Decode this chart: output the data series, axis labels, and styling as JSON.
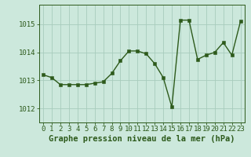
{
  "x": [
    0,
    1,
    2,
    3,
    4,
    5,
    6,
    7,
    8,
    9,
    10,
    11,
    12,
    13,
    14,
    15,
    16,
    17,
    18,
    19,
    20,
    21,
    22,
    23
  ],
  "y": [
    1013.2,
    1013.1,
    1012.85,
    1012.85,
    1012.85,
    1012.85,
    1012.9,
    1012.95,
    1013.25,
    1013.7,
    1014.05,
    1014.05,
    1013.95,
    1013.6,
    1013.1,
    1012.05,
    1015.15,
    1015.15,
    1013.75,
    1013.9,
    1014.0,
    1014.35,
    1013.9,
    1015.1
  ],
  "line_color": "#2d5a1b",
  "marker_color": "#2d5a1b",
  "bg_color": "#cce8dc",
  "grid_color": "#a8ccbc",
  "axis_color": "#2d5a1b",
  "xlabel": "Graphe pression niveau de la mer (hPa)",
  "xlabel_fontsize": 7.5,
  "ylabel_ticks": [
    1012,
    1013,
    1014,
    1015
  ],
  "ylim": [
    1011.5,
    1015.7
  ],
  "xlim": [
    -0.5,
    23.5
  ],
  "xtick_labels": [
    "0",
    "1",
    "2",
    "3",
    "4",
    "5",
    "6",
    "7",
    "8",
    "9",
    "10",
    "11",
    "12",
    "13",
    "14",
    "15",
    "16",
    "17",
    "18",
    "19",
    "20",
    "21",
    "22",
    "23"
  ],
  "tick_fontsize": 6.5,
  "line_width": 1.0,
  "marker_size": 2.5
}
